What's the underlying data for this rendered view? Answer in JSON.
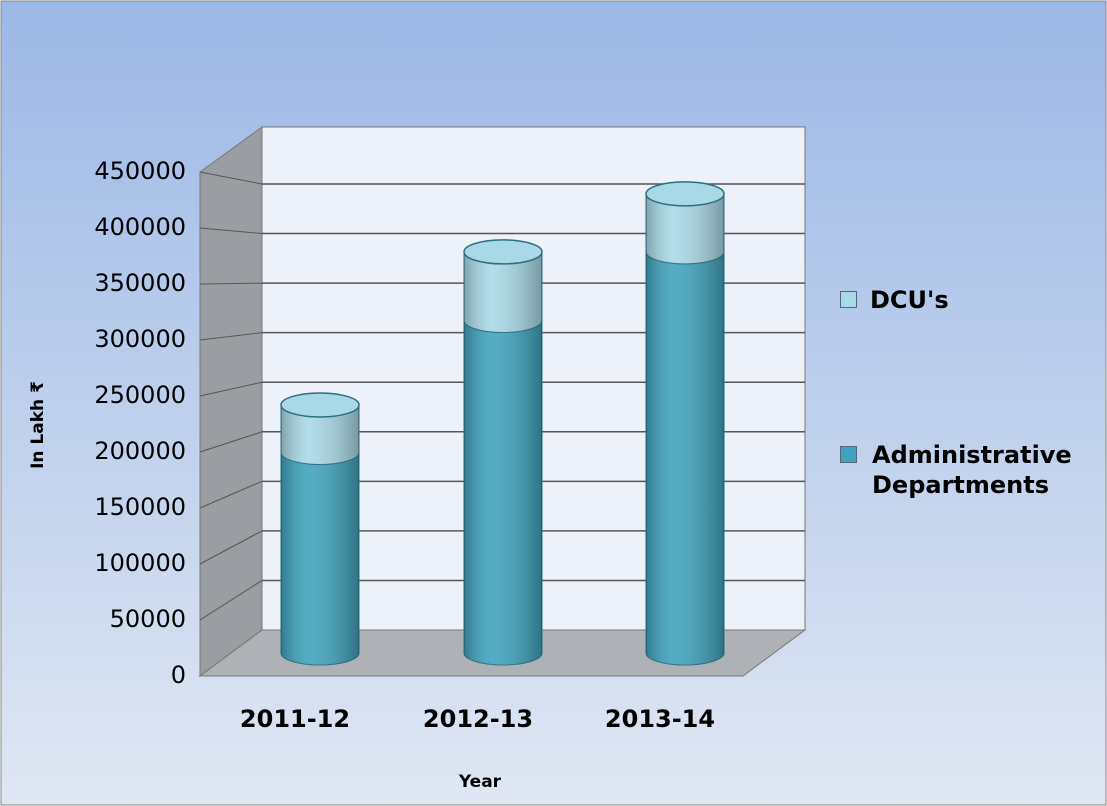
{
  "chart_data": {
    "type": "bar3d-stacked-cylinder",
    "categories": [
      "2011-12",
      "2012-13",
      "2013-14"
    ],
    "series": [
      {
        "name": "Administrative Departments",
        "color": "#3fa3bd",
        "values": [
          190000,
          315000,
          380000
        ]
      },
      {
        "name": "DCU's",
        "color": "#a9d9e7",
        "values": [
          45000,
          65000,
          55000
        ]
      }
    ],
    "ylim": [
      0,
      450000
    ],
    "yticks": [
      0,
      50000,
      100000,
      150000,
      200000,
      250000,
      300000,
      350000,
      400000,
      450000
    ],
    "grid": true,
    "y_label": "In Lakh ₹",
    "x_label": "Year",
    "legend": "right"
  }
}
